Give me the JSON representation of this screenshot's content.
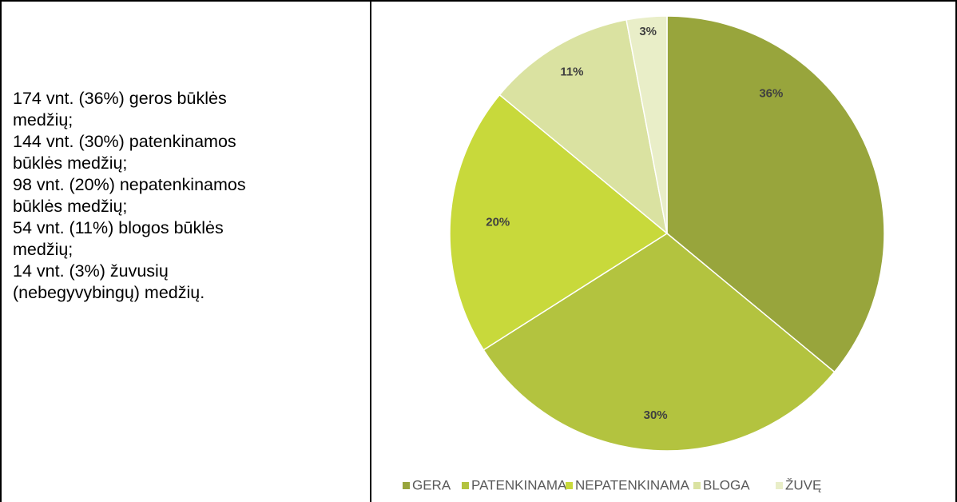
{
  "description_lines": [
    "174 vnt. (36%) geros būklės",
    "medžių;",
    "144 vnt. (30%)  patenkinamos",
    "būklės medžių;",
    "98 vnt. (20%) nepatenkinamos",
    "būklės medžių;",
    "54 vnt. (11%) blogos būklės",
    "medžių;",
    "14 vnt. (3%) žuvusių",
    "(nebegyvybingų) medžių."
  ],
  "colors": {
    "GERA": "#98A53C",
    "PATENKINAMA": "#B3C33F",
    "NEPATENKINAMA": "#C8D93B",
    "BLOGA": "#DAE2A1",
    "ŽUVĘ": "#E9EEC8"
  },
  "chart_data": {
    "type": "pie",
    "categories": [
      "GERA",
      "PATENKINAMA",
      "NEPATENKINAMA",
      "BLOGA",
      "ŽUVĘ"
    ],
    "values": [
      36,
      30,
      20,
      11,
      3
    ],
    "labels": [
      "36%",
      "30%",
      "20%",
      "11%",
      "3%"
    ],
    "legend_position": "bottom"
  }
}
